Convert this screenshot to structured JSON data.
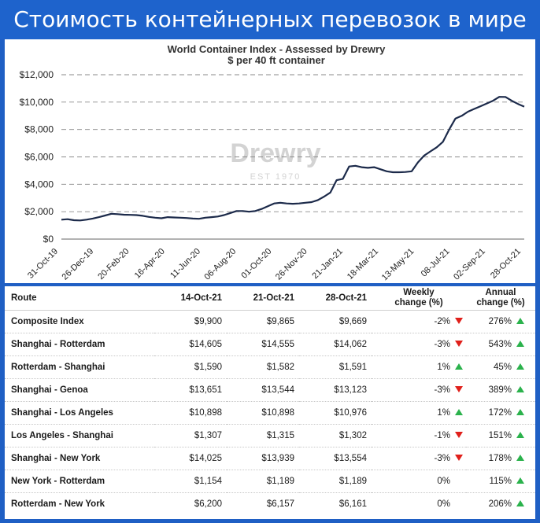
{
  "banner": {
    "title": "Стоимость контейнерных перевозок в мире"
  },
  "chart_data": {
    "type": "line",
    "title": "World Container Index - Assessed by Drewry",
    "subtitle": "$ per 40 ft container",
    "watermark": "Drewry",
    "watermark_sub": "EST 1970",
    "y_ticks": [
      "$0",
      "$2,000",
      "$4,000",
      "$6,000",
      "$8,000",
      "$10,000",
      "$12,000"
    ],
    "ylim": [
      0,
      12000
    ],
    "x_ticks": [
      "31-Oct-19",
      "26-Dec-19",
      "20-Feb-20",
      "16-Apr-20",
      "11-Jun-20",
      "06-Aug-20",
      "01-Oct-20",
      "26-Nov-20",
      "21-Jan-21",
      "18-Mar-21",
      "13-May-21",
      "08-Jul-21",
      "02-Sep-21",
      "28-Oct-21"
    ],
    "grid": "horizontal dashed",
    "line_color": "#1c2a4a",
    "series": [
      {
        "values": [
          1420,
          1450,
          1380,
          1360,
          1420,
          1500,
          1600,
          1720,
          1850,
          1820,
          1780,
          1770,
          1750,
          1700,
          1620,
          1560,
          1520,
          1600,
          1580,
          1560,
          1540,
          1500,
          1480,
          1560,
          1600,
          1650,
          1750,
          1900,
          2050,
          2050,
          2000,
          2050,
          2200,
          2400,
          2600,
          2650,
          2600,
          2580,
          2600,
          2650,
          2700,
          2850,
          3100,
          3400,
          4300,
          4400,
          5300,
          5350,
          5250,
          5200,
          5250,
          5100,
          4950,
          4880,
          4880,
          4900,
          4950,
          5600,
          6100,
          6400,
          6700,
          7100,
          8000,
          8800,
          9000,
          9300,
          9500,
          9700,
          9900,
          10100,
          10380,
          10377,
          10100,
          9865,
          9669
        ]
      }
    ]
  },
  "table": {
    "headers": {
      "route": "Route",
      "d1": "14-Oct-21",
      "d2": "21-Oct-21",
      "d3": "28-Oct-21",
      "weekly_1": "Weekly",
      "weekly_2": "change (%)",
      "annual_1": "Annual",
      "annual_2": "change (%)"
    },
    "rows": [
      {
        "route": "Composite Index",
        "d1": "$9,900",
        "d2": "$9,865",
        "d3": "$9,669",
        "weekly": "-2%",
        "weekly_dir": "down",
        "annual": "276%",
        "annual_dir": "up"
      },
      {
        "route": "Shanghai - Rotterdam",
        "d1": "$14,605",
        "d2": "$14,555",
        "d3": "$14,062",
        "weekly": "-3%",
        "weekly_dir": "down",
        "annual": "543%",
        "annual_dir": "up"
      },
      {
        "route": "Rotterdam - Shanghai",
        "d1": "$1,590",
        "d2": "$1,582",
        "d3": "$1,591",
        "weekly": "1%",
        "weekly_dir": "up",
        "annual": "45%",
        "annual_dir": "up"
      },
      {
        "route": "Shanghai - Genoa",
        "d1": "$13,651",
        "d2": "$13,544",
        "d3": "$13,123",
        "weekly": "-3%",
        "weekly_dir": "down",
        "annual": "389%",
        "annual_dir": "up"
      },
      {
        "route": "Shanghai - Los Angeles",
        "d1": "$10,898",
        "d2": "$10,898",
        "d3": "$10,976",
        "weekly": "1%",
        "weekly_dir": "up",
        "annual": "172%",
        "annual_dir": "up"
      },
      {
        "route": "Los Angeles - Shanghai",
        "d1": "$1,307",
        "d2": "$1,315",
        "d3": "$1,302",
        "weekly": "-1%",
        "weekly_dir": "down",
        "annual": "151%",
        "annual_dir": "up"
      },
      {
        "route": "Shanghai - New York",
        "d1": "$14,025",
        "d2": "$13,939",
        "d3": "$13,554",
        "weekly": "-3%",
        "weekly_dir": "down",
        "annual": "178%",
        "annual_dir": "up"
      },
      {
        "route": "New York - Rotterdam",
        "d1": "$1,154",
        "d2": "$1,189",
        "d3": "$1,189",
        "weekly": "0%",
        "weekly_dir": "none",
        "annual": "115%",
        "annual_dir": "up"
      },
      {
        "route": "Rotterdam - New York",
        "d1": "$6,200",
        "d2": "$6,157",
        "d3": "$6,161",
        "weekly": "0%",
        "weekly_dir": "none",
        "annual": "206%",
        "annual_dir": "up"
      }
    ]
  }
}
